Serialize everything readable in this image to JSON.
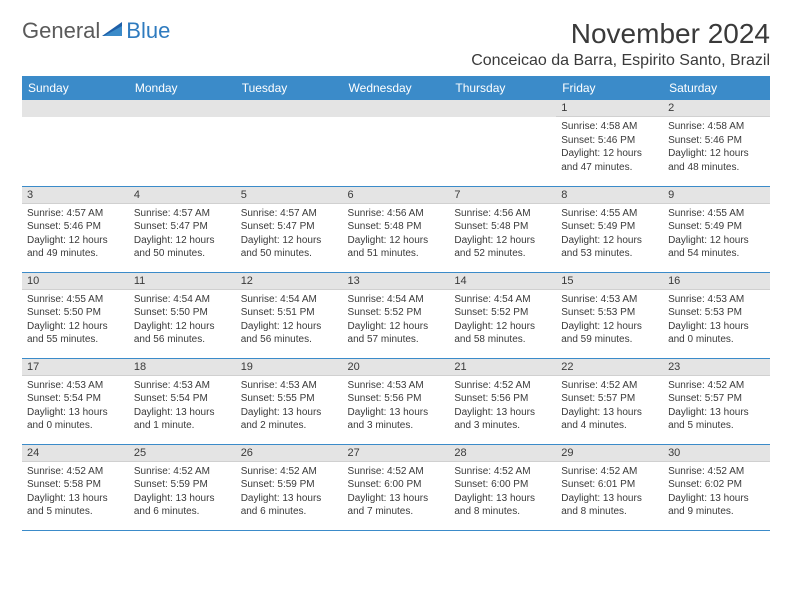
{
  "brand": {
    "part1": "General",
    "part2": "Blue"
  },
  "title": "November 2024",
  "location": "Conceicao da Barra, Espirito Santo, Brazil",
  "colors": {
    "header_bg": "#3b8bc9",
    "header_text": "#ffffff",
    "daynum_bg": "#e4e4e4",
    "border": "#3b8bc9",
    "text": "#3a3a3a",
    "brand_gray": "#5a5a5a",
    "brand_blue": "#2f7bbf"
  },
  "weekdays": [
    "Sunday",
    "Monday",
    "Tuesday",
    "Wednesday",
    "Thursday",
    "Friday",
    "Saturday"
  ],
  "weeks": [
    [
      null,
      null,
      null,
      null,
      null,
      {
        "num": "1",
        "sunrise": "Sunrise: 4:58 AM",
        "sunset": "Sunset: 5:46 PM",
        "daylight": "Daylight: 12 hours and 47 minutes."
      },
      {
        "num": "2",
        "sunrise": "Sunrise: 4:58 AM",
        "sunset": "Sunset: 5:46 PM",
        "daylight": "Daylight: 12 hours and 48 minutes."
      }
    ],
    [
      {
        "num": "3",
        "sunrise": "Sunrise: 4:57 AM",
        "sunset": "Sunset: 5:46 PM",
        "daylight": "Daylight: 12 hours and 49 minutes."
      },
      {
        "num": "4",
        "sunrise": "Sunrise: 4:57 AM",
        "sunset": "Sunset: 5:47 PM",
        "daylight": "Daylight: 12 hours and 50 minutes."
      },
      {
        "num": "5",
        "sunrise": "Sunrise: 4:57 AM",
        "sunset": "Sunset: 5:47 PM",
        "daylight": "Daylight: 12 hours and 50 minutes."
      },
      {
        "num": "6",
        "sunrise": "Sunrise: 4:56 AM",
        "sunset": "Sunset: 5:48 PM",
        "daylight": "Daylight: 12 hours and 51 minutes."
      },
      {
        "num": "7",
        "sunrise": "Sunrise: 4:56 AM",
        "sunset": "Sunset: 5:48 PM",
        "daylight": "Daylight: 12 hours and 52 minutes."
      },
      {
        "num": "8",
        "sunrise": "Sunrise: 4:55 AM",
        "sunset": "Sunset: 5:49 PM",
        "daylight": "Daylight: 12 hours and 53 minutes."
      },
      {
        "num": "9",
        "sunrise": "Sunrise: 4:55 AM",
        "sunset": "Sunset: 5:49 PM",
        "daylight": "Daylight: 12 hours and 54 minutes."
      }
    ],
    [
      {
        "num": "10",
        "sunrise": "Sunrise: 4:55 AM",
        "sunset": "Sunset: 5:50 PM",
        "daylight": "Daylight: 12 hours and 55 minutes."
      },
      {
        "num": "11",
        "sunrise": "Sunrise: 4:54 AM",
        "sunset": "Sunset: 5:50 PM",
        "daylight": "Daylight: 12 hours and 56 minutes."
      },
      {
        "num": "12",
        "sunrise": "Sunrise: 4:54 AM",
        "sunset": "Sunset: 5:51 PM",
        "daylight": "Daylight: 12 hours and 56 minutes."
      },
      {
        "num": "13",
        "sunrise": "Sunrise: 4:54 AM",
        "sunset": "Sunset: 5:52 PM",
        "daylight": "Daylight: 12 hours and 57 minutes."
      },
      {
        "num": "14",
        "sunrise": "Sunrise: 4:54 AM",
        "sunset": "Sunset: 5:52 PM",
        "daylight": "Daylight: 12 hours and 58 minutes."
      },
      {
        "num": "15",
        "sunrise": "Sunrise: 4:53 AM",
        "sunset": "Sunset: 5:53 PM",
        "daylight": "Daylight: 12 hours and 59 minutes."
      },
      {
        "num": "16",
        "sunrise": "Sunrise: 4:53 AM",
        "sunset": "Sunset: 5:53 PM",
        "daylight": "Daylight: 13 hours and 0 minutes."
      }
    ],
    [
      {
        "num": "17",
        "sunrise": "Sunrise: 4:53 AM",
        "sunset": "Sunset: 5:54 PM",
        "daylight": "Daylight: 13 hours and 0 minutes."
      },
      {
        "num": "18",
        "sunrise": "Sunrise: 4:53 AM",
        "sunset": "Sunset: 5:54 PM",
        "daylight": "Daylight: 13 hours and 1 minute."
      },
      {
        "num": "19",
        "sunrise": "Sunrise: 4:53 AM",
        "sunset": "Sunset: 5:55 PM",
        "daylight": "Daylight: 13 hours and 2 minutes."
      },
      {
        "num": "20",
        "sunrise": "Sunrise: 4:53 AM",
        "sunset": "Sunset: 5:56 PM",
        "daylight": "Daylight: 13 hours and 3 minutes."
      },
      {
        "num": "21",
        "sunrise": "Sunrise: 4:52 AM",
        "sunset": "Sunset: 5:56 PM",
        "daylight": "Daylight: 13 hours and 3 minutes."
      },
      {
        "num": "22",
        "sunrise": "Sunrise: 4:52 AM",
        "sunset": "Sunset: 5:57 PM",
        "daylight": "Daylight: 13 hours and 4 minutes."
      },
      {
        "num": "23",
        "sunrise": "Sunrise: 4:52 AM",
        "sunset": "Sunset: 5:57 PM",
        "daylight": "Daylight: 13 hours and 5 minutes."
      }
    ],
    [
      {
        "num": "24",
        "sunrise": "Sunrise: 4:52 AM",
        "sunset": "Sunset: 5:58 PM",
        "daylight": "Daylight: 13 hours and 5 minutes."
      },
      {
        "num": "25",
        "sunrise": "Sunrise: 4:52 AM",
        "sunset": "Sunset: 5:59 PM",
        "daylight": "Daylight: 13 hours and 6 minutes."
      },
      {
        "num": "26",
        "sunrise": "Sunrise: 4:52 AM",
        "sunset": "Sunset: 5:59 PM",
        "daylight": "Daylight: 13 hours and 6 minutes."
      },
      {
        "num": "27",
        "sunrise": "Sunrise: 4:52 AM",
        "sunset": "Sunset: 6:00 PM",
        "daylight": "Daylight: 13 hours and 7 minutes."
      },
      {
        "num": "28",
        "sunrise": "Sunrise: 4:52 AM",
        "sunset": "Sunset: 6:00 PM",
        "daylight": "Daylight: 13 hours and 8 minutes."
      },
      {
        "num": "29",
        "sunrise": "Sunrise: 4:52 AM",
        "sunset": "Sunset: 6:01 PM",
        "daylight": "Daylight: 13 hours and 8 minutes."
      },
      {
        "num": "30",
        "sunrise": "Sunrise: 4:52 AM",
        "sunset": "Sunset: 6:02 PM",
        "daylight": "Daylight: 13 hours and 9 minutes."
      }
    ]
  ]
}
